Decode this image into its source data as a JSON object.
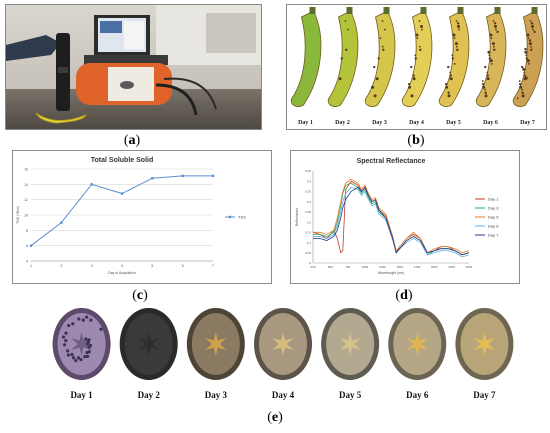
{
  "labels": {
    "a": "(a)",
    "b": "(b)",
    "c": "(c)",
    "d": "(d)",
    "e": "(e)"
  },
  "bananas": {
    "days": [
      "Day 1",
      "Day 2",
      "Day 3",
      "Day 4",
      "Day 5",
      "Day 6",
      "Day 7"
    ],
    "colors": [
      "#8ab83a",
      "#b4c43a",
      "#d3c64a",
      "#e3cf58",
      "#e0c253",
      "#d9b55a",
      "#cda153"
    ]
  },
  "sections": {
    "days": [
      "Day 1",
      "Day 2",
      "Day 3",
      "Day 4",
      "Day 5",
      "Day 6",
      "Day 7"
    ]
  },
  "chart_data": [
    {
      "type": "line",
      "title": "Total Soluble Solid",
      "xlabel": "Day of Acquisition",
      "ylabel": "TSS (°Brix)",
      "x": [
        1,
        2,
        3,
        4,
        5,
        6,
        7
      ],
      "xlim": [
        1,
        7
      ],
      "ylim": [
        4,
        16
      ],
      "yticks": [
        4,
        6,
        8,
        10,
        12,
        14,
        16
      ],
      "series": [
        {
          "name": "TSS",
          "color": "#5b8fd0",
          "values": [
            6,
            9,
            14,
            12.8,
            14.8,
            15.1,
            15.1
          ]
        }
      ],
      "grid": true,
      "legend": "right"
    },
    {
      "type": "line",
      "title": "Spectral Reflectance",
      "xlabel": "Wavelength (nm)",
      "ylabel": "Reflectance",
      "xticks": [
        250,
        500,
        750,
        1000,
        1250,
        1500,
        1750,
        2000,
        2250,
        2500
      ],
      "xlim": [
        250,
        2500
      ],
      "ylim": [
        0,
        0.45
      ],
      "yticks": [
        0,
        0.05,
        0.1,
        0.15,
        0.2,
        0.25,
        0.3,
        0.35,
        0.4,
        0.45
      ],
      "x": [
        250,
        350,
        450,
        550,
        600,
        650,
        680,
        720,
        800,
        900,
        950,
        1000,
        1050,
        1100,
        1150,
        1200,
        1300,
        1400,
        1450,
        1500,
        1600,
        1700,
        1800,
        1900,
        2000,
        2100,
        2200,
        2300,
        2400,
        2500
      ],
      "series": [
        {
          "name": "Day 1",
          "color": "#c0392b",
          "values": [
            0.15,
            0.14,
            0.12,
            0.16,
            0.12,
            0.05,
            0.06,
            0.36,
            0.4,
            0.38,
            0.35,
            0.37,
            0.33,
            0.3,
            0.31,
            0.26,
            0.23,
            0.13,
            0.05,
            0.08,
            0.12,
            0.14,
            0.12,
            0.05,
            0.06,
            0.08,
            0.08,
            0.06,
            0.04,
            0.05
          ]
        },
        {
          "name": "Day 3",
          "color": "#27ae60",
          "values": [
            0.14,
            0.14,
            0.13,
            0.15,
            0.2,
            0.28,
            0.34,
            0.38,
            0.39,
            0.37,
            0.34,
            0.36,
            0.32,
            0.29,
            0.3,
            0.25,
            0.22,
            0.12,
            0.05,
            0.07,
            0.11,
            0.13,
            0.11,
            0.04,
            0.06,
            0.07,
            0.07,
            0.06,
            0.04,
            0.05
          ]
        },
        {
          "name": "Day 5",
          "color": "#e67e22",
          "values": [
            0.15,
            0.15,
            0.14,
            0.16,
            0.22,
            0.3,
            0.35,
            0.39,
            0.41,
            0.39,
            0.36,
            0.38,
            0.34,
            0.31,
            0.32,
            0.27,
            0.24,
            0.13,
            0.06,
            0.08,
            0.12,
            0.15,
            0.12,
            0.05,
            0.07,
            0.08,
            0.08,
            0.07,
            0.05,
            0.06
          ]
        },
        {
          "name": "Day 6",
          "color": "#5dade2",
          "values": [
            0.13,
            0.13,
            0.12,
            0.14,
            0.18,
            0.25,
            0.3,
            0.34,
            0.37,
            0.36,
            0.33,
            0.35,
            0.31,
            0.28,
            0.29,
            0.24,
            0.21,
            0.11,
            0.05,
            0.07,
            0.1,
            0.12,
            0.1,
            0.04,
            0.05,
            0.06,
            0.06,
            0.05,
            0.03,
            0.04
          ]
        },
        {
          "name": "Day 7",
          "color": "#1f3a93",
          "values": [
            0.12,
            0.12,
            0.11,
            0.13,
            0.16,
            0.22,
            0.27,
            0.31,
            0.35,
            0.37,
            0.35,
            0.37,
            0.33,
            0.3,
            0.31,
            0.26,
            0.22,
            0.12,
            0.05,
            0.07,
            0.11,
            0.13,
            0.11,
            0.05,
            0.06,
            0.07,
            0.07,
            0.06,
            0.04,
            0.05
          ]
        }
      ],
      "grid": false,
      "legend": "right"
    }
  ]
}
